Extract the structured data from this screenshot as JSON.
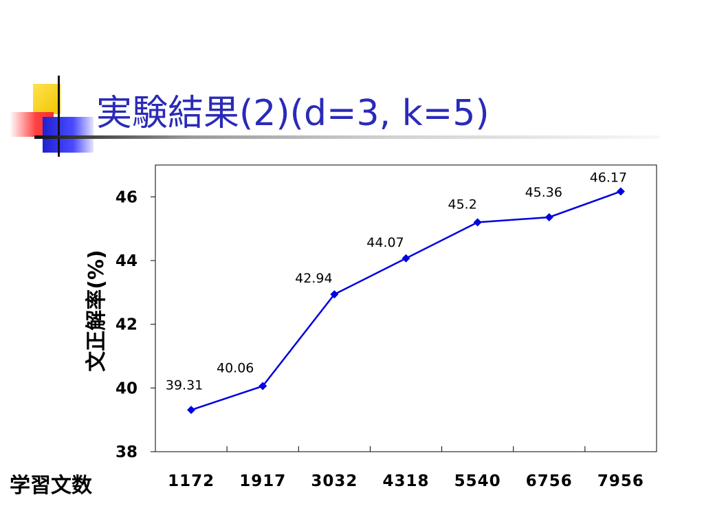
{
  "slide": {
    "title": "実験結果(2)(d=3, k=5)"
  },
  "colors": {
    "title": "#2a2ab8",
    "series": "#0000dd",
    "axis": "#000000"
  },
  "chart_data": {
    "type": "line",
    "title": "",
    "xlabel": "学習文数",
    "ylabel": "文正解率(%)",
    "categories": [
      "1172",
      "1917",
      "3032",
      "4318",
      "5540",
      "6756",
      "7956"
    ],
    "series": [
      {
        "values": [
          39.31,
          40.06,
          42.94,
          44.07,
          45.2,
          45.36,
          46.17
        ],
        "labels": [
          "39.31",
          "40.06",
          "42.94",
          "44.07",
          "45.2",
          "45.36",
          "46.17"
        ],
        "marker": "diamond"
      }
    ],
    "ylim": [
      38,
      47
    ],
    "yticks": [
      "38",
      "40",
      "42",
      "44",
      "46"
    ],
    "grid": false,
    "legend": "none"
  }
}
